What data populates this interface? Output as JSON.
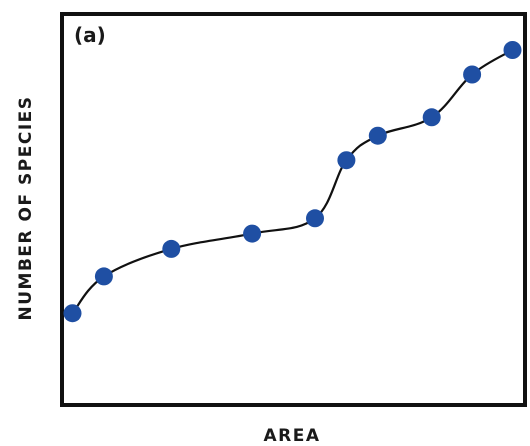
{
  "chart_data": {
    "type": "scatter",
    "panel_label": "(a)",
    "xlabel": "AREA",
    "ylabel": "NUMBER OF SPECIES",
    "xlim": [
      0,
      100
    ],
    "ylim": [
      0,
      100
    ],
    "grid": false,
    "series": [
      {
        "x": [
          1,
          8,
          23,
          41,
          55,
          62,
          69,
          81,
          90,
          99
        ],
        "y": [
          14,
          26,
          35,
          40,
          45,
          64,
          72,
          78,
          92,
          100
        ]
      }
    ],
    "colors": {
      "point": "#1f4fa3",
      "line": "#111111",
      "frame": "#111111"
    }
  }
}
